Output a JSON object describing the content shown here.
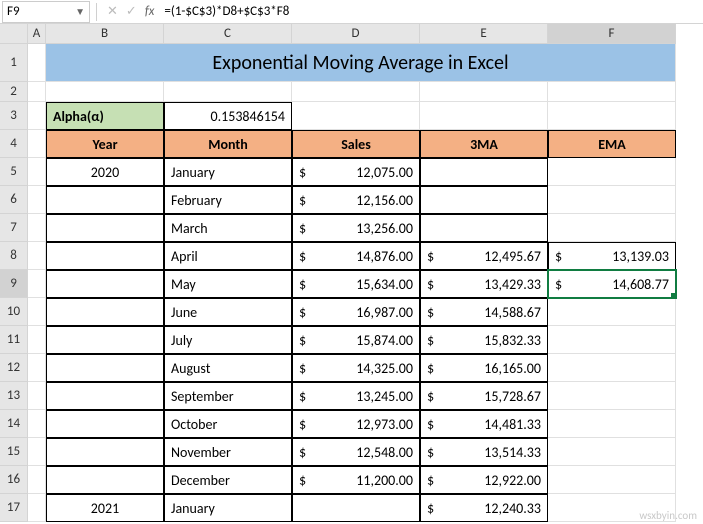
{
  "namebox": {
    "value": "F9"
  },
  "formula_bar": {
    "formula": "=(1-$C$3)*D8+$C$3*F8"
  },
  "columns": [
    "A",
    "B",
    "C",
    "D",
    "E",
    "F"
  ],
  "title": "Exponential Moving Average in Excel",
  "alpha": {
    "label": "Alpha(α)",
    "value": "0.153846154"
  },
  "headers": {
    "b": "Year",
    "c": "Month",
    "d": "Sales",
    "e": "3MA",
    "f": "EMA"
  },
  "selected": {
    "cell": "F9",
    "col": "F",
    "row": "9"
  },
  "rows": [
    {
      "n": 5,
      "year": "2020",
      "month": "January",
      "sales": "12,075.00",
      "ma3": "",
      "ema": ""
    },
    {
      "n": 6,
      "year": "",
      "month": "February",
      "sales": "12,156.00",
      "ma3": "",
      "ema": ""
    },
    {
      "n": 7,
      "year": "",
      "month": "March",
      "sales": "13,256.00",
      "ma3": "",
      "ema": ""
    },
    {
      "n": 8,
      "year": "",
      "month": "April",
      "sales": "14,876.00",
      "ma3": "12,495.67",
      "ema": "13,139.03"
    },
    {
      "n": 9,
      "year": "",
      "month": "May",
      "sales": "15,634.00",
      "ma3": "13,429.33",
      "ema": "14,608.77"
    },
    {
      "n": 10,
      "year": "",
      "month": "June",
      "sales": "16,987.00",
      "ma3": "14,588.67",
      "ema": ""
    },
    {
      "n": 11,
      "year": "",
      "month": "July",
      "sales": "15,874.00",
      "ma3": "15,832.33",
      "ema": ""
    },
    {
      "n": 12,
      "year": "",
      "month": "August",
      "sales": "14,325.00",
      "ma3": "16,165.00",
      "ema": ""
    },
    {
      "n": 13,
      "year": "",
      "month": "September",
      "sales": "13,245.00",
      "ma3": "15,728.67",
      "ema": ""
    },
    {
      "n": 14,
      "year": "",
      "month": "October",
      "sales": "12,973.00",
      "ma3": "14,481.33",
      "ema": ""
    },
    {
      "n": 15,
      "year": "",
      "month": "November",
      "sales": "12,548.00",
      "ma3": "13,514.33",
      "ema": ""
    },
    {
      "n": 16,
      "year": "",
      "month": "December",
      "sales": "11,200.00",
      "ma3": "12,922.00",
      "ema": ""
    },
    {
      "n": 17,
      "year": "2021",
      "month": "January",
      "sales": "",
      "ma3": "12,240.33",
      "ema": ""
    }
  ],
  "colors": {
    "title_bg": "#9bc2e6",
    "header_bg": "#f4b084",
    "alpha_bg": "#c6e0b4",
    "selection": "#107c41",
    "colhdr_bg": "#e6e6e6",
    "grid_line": "#e0e0e0"
  },
  "watermark": "wsxbyin.com"
}
